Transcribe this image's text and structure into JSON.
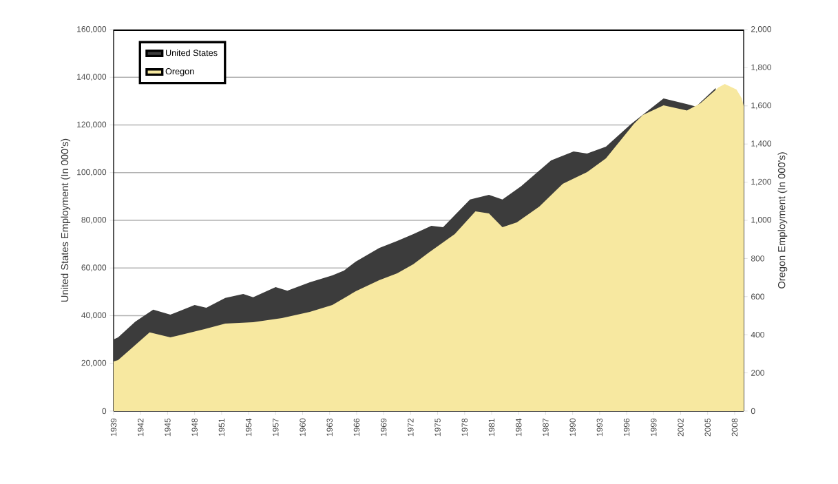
{
  "chart_data": {
    "type": "area",
    "ylabel": "United States Employment (In 000's)",
    "y2label": "Oregon Employment (In 000's)",
    "xlim": [
      1939,
      2009
    ],
    "xticks": [
      1939,
      1942,
      1945,
      1948,
      1951,
      1954,
      1957,
      1960,
      1963,
      1966,
      1969,
      1972,
      1975,
      1978,
      1981,
      1984,
      1987,
      1990,
      1993,
      1996,
      1999,
      2002,
      2005,
      2008
    ],
    "ylim": [
      0,
      160000
    ],
    "yticks": [
      0,
      {
        "value": 20000,
        "label": "20,000"
      },
      {
        "value": 40000,
        "label": "40,000"
      },
      {
        "value": 60000,
        "label": "60,000"
      },
      {
        "value": 80000,
        "label": "80,000"
      },
      {
        "value": 100000,
        "label": "100,000"
      },
      {
        "value": 120000,
        "label": "120,000"
      },
      {
        "value": 140000,
        "label": "140,000"
      },
      {
        "value": 160000,
        "label": "160,000"
      }
    ],
    "y2lim": [
      0,
      2000
    ],
    "y2ticks": [
      0,
      200,
      400,
      600,
      800,
      {
        "value": 1000,
        "label": "1,000"
      },
      {
        "value": 1200,
        "label": "1,200"
      },
      {
        "value": 1400,
        "label": "1,400"
      },
      {
        "value": 1600,
        "label": "1,600"
      },
      {
        "value": 1800,
        "label": "1,800"
      },
      {
        "value": 2000,
        "label": "2,000"
      }
    ],
    "grid": "y",
    "legend": "top left",
    "series": [
      {
        "name": "United States",
        "color": "#3c3c3c",
        "axis": "y",
        "x": [
          1939,
          1939.5,
          1941.4,
          1943.4,
          1945.3,
          1948.0,
          1949.3,
          1951.4,
          1953.4,
          1954.5,
          1957.0,
          1958.3,
          1960.8,
          1963.3,
          1964.6,
          1965.9,
          1968.5,
          1970.5,
          1972.3,
          1974.3,
          1975.6,
          1978.6,
          1980.7,
          1982.2,
          1984.3,
          1987.6,
          1990.1,
          1991.6,
          1993.7,
          1996.5,
          2000.1,
          2002.7,
          2003.7,
          2005.9
        ],
        "values": [
          30000,
          30900,
          37500,
          42500,
          40400,
          44500,
          43300,
          47400,
          49100,
          47700,
          52000,
          50500,
          54000,
          56900,
          58900,
          62700,
          68400,
          71300,
          74200,
          77700,
          77100,
          88700,
          90700,
          88700,
          94400,
          105100,
          108900,
          108000,
          110900,
          120400,
          131100,
          128700,
          127700,
          135500
        ]
      },
      {
        "name": "Oregon",
        "color": "#f7e8a0",
        "axis": "y2",
        "x": [
          1939,
          1939.5,
          1943.0,
          1945.3,
          1949.1,
          1951.4,
          1954.5,
          1957.7,
          1960.8,
          1963.3,
          1965.9,
          1968.5,
          1970.5,
          1972.3,
          1974.0,
          1976.9,
          1979.2,
          1980.7,
          1982.2,
          1983.8,
          1986.3,
          1988.9,
          1991.6,
          1993.7,
          1996.8,
          1997.8,
          2000.1,
          2002.7,
          2004.2,
          2006.2,
          2006.9,
          2008.2,
          2008.8,
          2009
        ],
        "values": [
          260,
          267,
          412,
          386,
          430,
          458,
          466,
          487,
          520,
          556,
          628,
          686,
          722,
          770,
          830,
          928,
          1047,
          1036,
          964,
          989,
          1072,
          1191,
          1253,
          1325,
          1505,
          1552,
          1603,
          1576,
          1614,
          1697,
          1715,
          1686,
          1639,
          1600
        ]
      }
    ]
  }
}
